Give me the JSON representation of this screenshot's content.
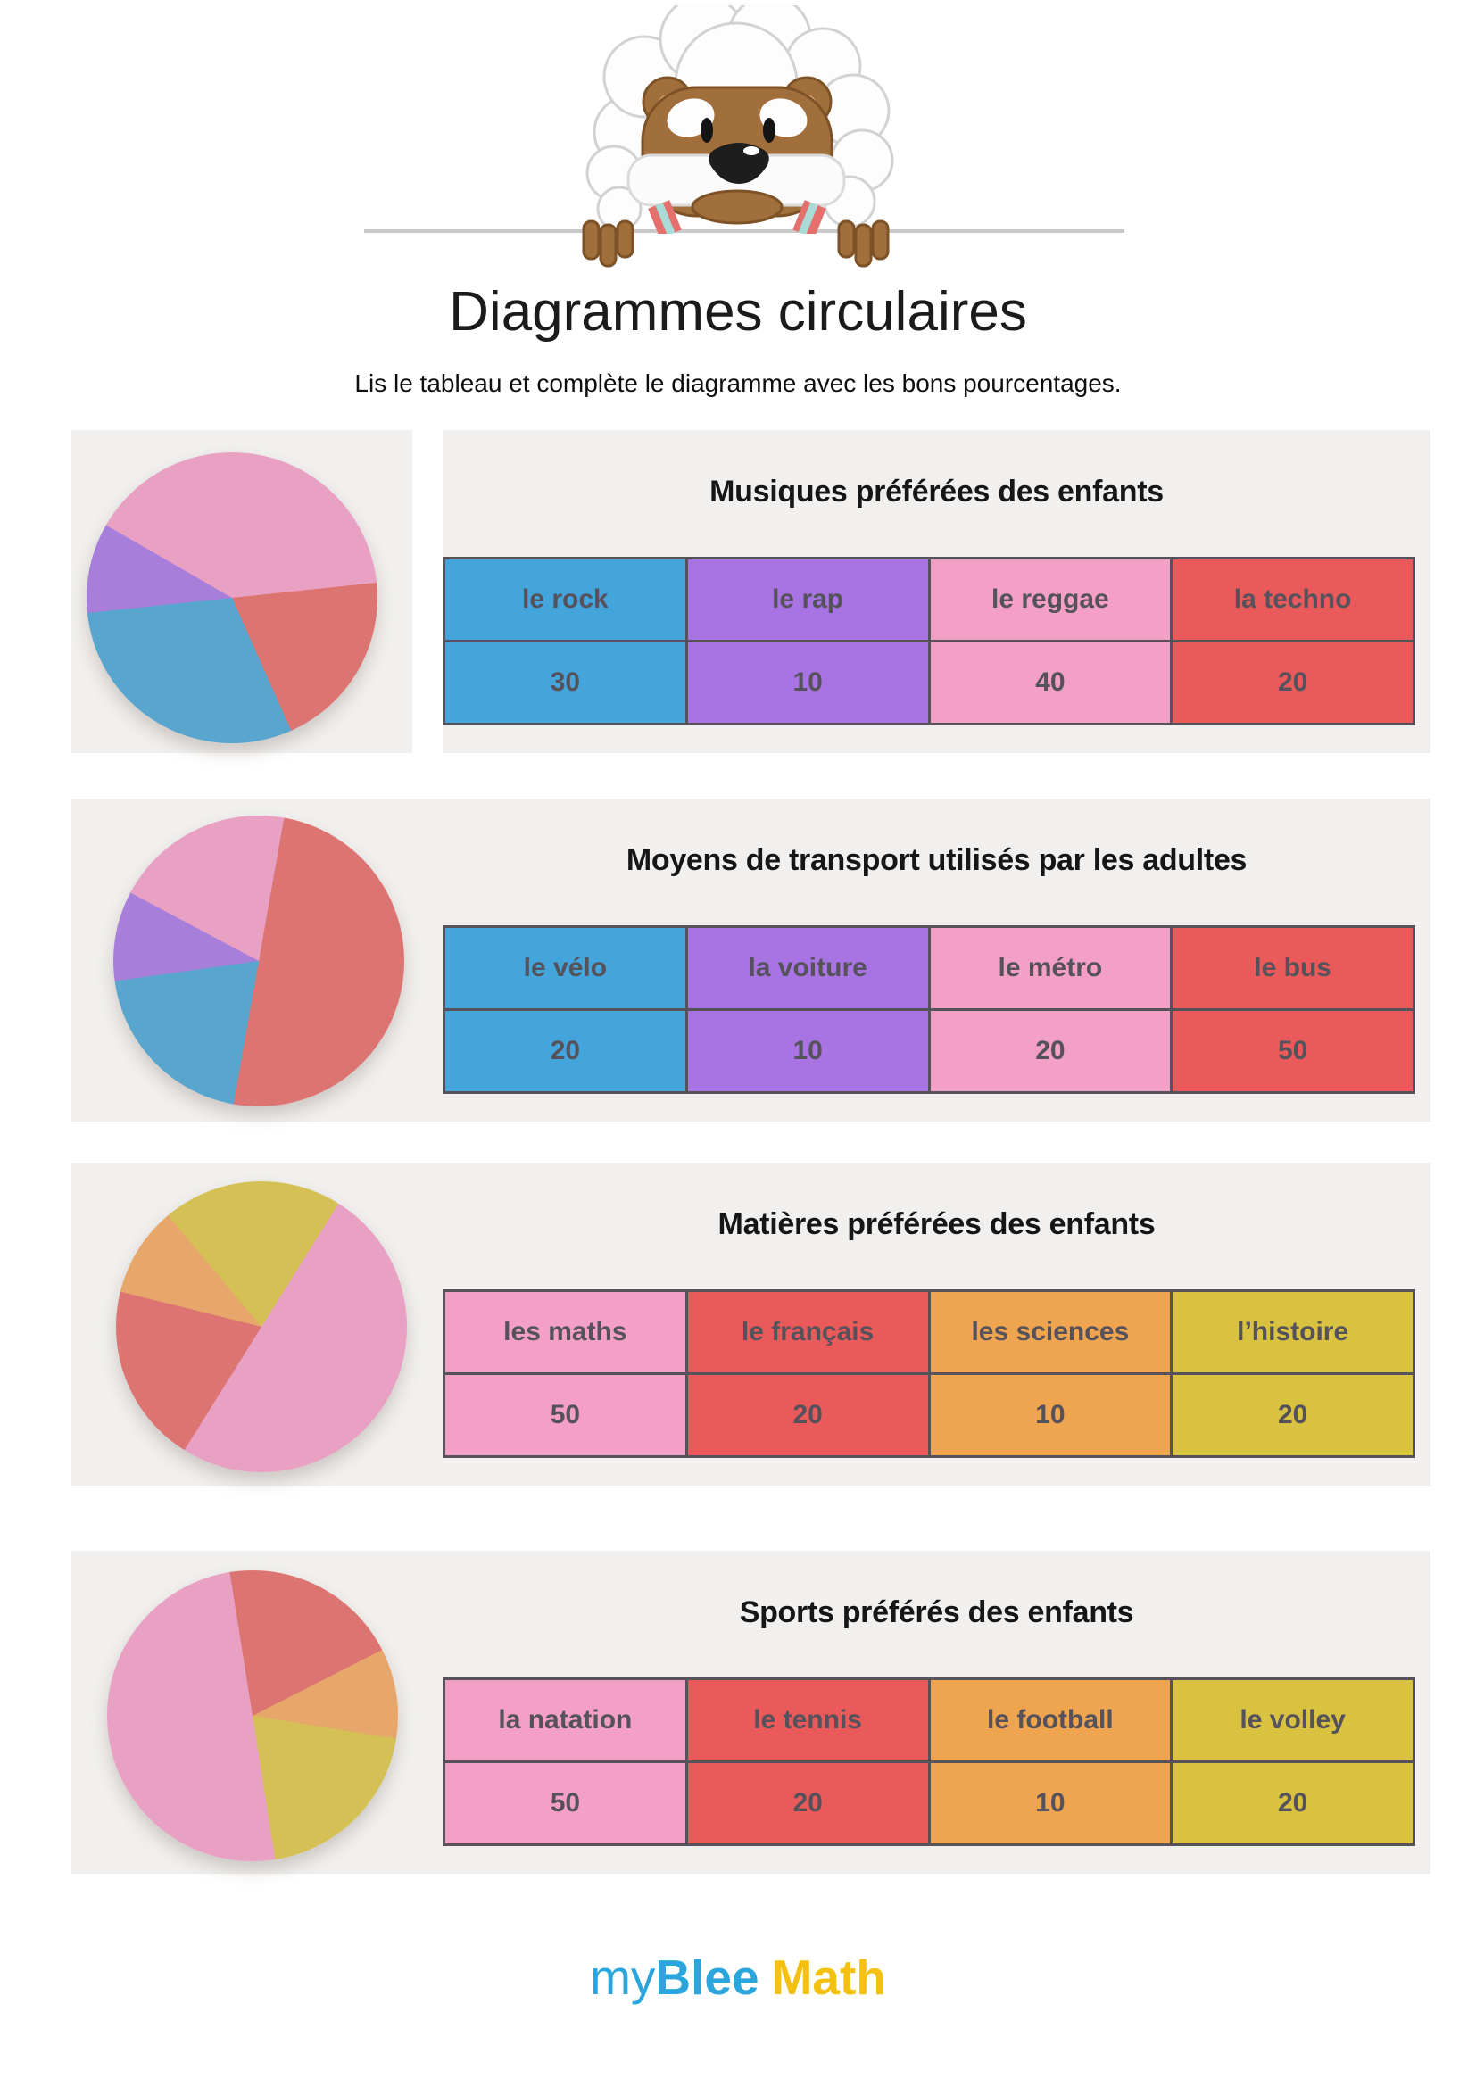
{
  "page": {
    "title": "Diagrammes circulaires",
    "subtitle": "Lis le tableau et complète le diagramme avec les bons pourcentages."
  },
  "colors": {
    "panel_bg": "#f1f0ee",
    "table_border": "#55525a",
    "cell_text": "#55525b",
    "section_title_text": "#161616",
    "header_line": "#c9c9c9",
    "logo_blue": "#2ba6dd",
    "logo_gold": "#f5c110",
    "cell": {
      "blue": "#44a5dc",
      "purple": "#a873e2",
      "pink": "#f49fc6",
      "red": "#eb5a5a",
      "orange": "#efa44f",
      "yellow": "#d8c23f"
    },
    "pie": {
      "blue": "#58a5ce",
      "purple": "#a87edb",
      "pink": "#e8a0c3",
      "red": "#dc7471",
      "orange": "#e7a76a",
      "yellow": "#d4c055"
    }
  },
  "sections": [
    {
      "title": "Musiques préférées des enfants",
      "columns": [
        {
          "label": "le rock",
          "value": "30",
          "color": "blue"
        },
        {
          "label": "le rap",
          "value": "10",
          "color": "purple"
        },
        {
          "label": "le reggae",
          "value": "40",
          "color": "pink"
        },
        {
          "label": "la techno",
          "value": "20",
          "color": "red"
        }
      ],
      "pie": {
        "start_deg": 300,
        "slices": [
          {
            "label": "le reggae",
            "percent": 40,
            "color": "pink"
          },
          {
            "label": "la techno",
            "percent": 20,
            "color": "red"
          },
          {
            "label": "le rock",
            "percent": 30,
            "color": "blue"
          },
          {
            "label": "le rap",
            "percent": 10,
            "color": "purple"
          }
        ]
      }
    },
    {
      "title": "Moyens de transport utilisés par les adultes",
      "columns": [
        {
          "label": "le vélo",
          "value": "20",
          "color": "blue"
        },
        {
          "label": "la voiture",
          "value": "10",
          "color": "purple"
        },
        {
          "label": "le métro",
          "value": "20",
          "color": "pink"
        },
        {
          "label": "le bus",
          "value": "50",
          "color": "red"
        }
      ],
      "pie": {
        "start_deg": 10,
        "slices": [
          {
            "label": "le bus",
            "percent": 50,
            "color": "red"
          },
          {
            "label": "le vélo",
            "percent": 20,
            "color": "blue"
          },
          {
            "label": "la voiture",
            "percent": 10,
            "color": "purple"
          },
          {
            "label": "le métro",
            "percent": 20,
            "color": "pink"
          }
        ]
      }
    },
    {
      "title": "Matières préférées des enfants",
      "columns": [
        {
          "label": "les maths",
          "value": "50",
          "color": "pink"
        },
        {
          "label": "le français",
          "value": "20",
          "color": "red"
        },
        {
          "label": "les sciences",
          "value": "10",
          "color": "orange"
        },
        {
          "label": "l’histoire",
          "value": "20",
          "color": "yellow"
        }
      ],
      "pie": {
        "start_deg": 32,
        "slices": [
          {
            "label": "les maths",
            "percent": 50,
            "color": "pink"
          },
          {
            "label": "le français",
            "percent": 20,
            "color": "red"
          },
          {
            "label": "les sciences",
            "percent": 10,
            "color": "orange"
          },
          {
            "label": "l’histoire",
            "percent": 20,
            "color": "yellow"
          }
        ]
      }
    },
    {
      "title": "Sports préférés des enfants",
      "columns": [
        {
          "label": "la natation",
          "value": "50",
          "color": "pink"
        },
        {
          "label": "le tennis",
          "value": "20",
          "color": "red"
        },
        {
          "label": "le football",
          "value": "10",
          "color": "orange"
        },
        {
          "label": "le volley",
          "value": "20",
          "color": "yellow"
        }
      ],
      "pie": {
        "start_deg": 351,
        "slices": [
          {
            "label": "le tennis",
            "percent": 20,
            "color": "red"
          },
          {
            "label": "le football",
            "percent": 10,
            "color": "orange"
          },
          {
            "label": "le volley",
            "percent": 20,
            "color": "yellow"
          },
          {
            "label": "la natation",
            "percent": 50,
            "color": "pink"
          }
        ]
      }
    }
  ],
  "footer": {
    "logo_my": "my",
    "logo_blee": "Blee",
    "logo_math": "Math"
  },
  "chart_data": [
    {
      "type": "pie",
      "title": "Musiques préférées des enfants",
      "labels": [
        "le rock",
        "le rap",
        "le reggae",
        "la techno"
      ],
      "values": [
        30,
        10,
        40,
        20
      ],
      "colors": [
        "blue",
        "purple",
        "pink",
        "red"
      ],
      "start_angle_deg": 300
    },
    {
      "type": "pie",
      "title": "Moyens de transport utilisés par les adultes",
      "labels": [
        "le vélo",
        "la voiture",
        "le métro",
        "le bus"
      ],
      "values": [
        20,
        10,
        20,
        50
      ],
      "colors": [
        "blue",
        "purple",
        "pink",
        "red"
      ],
      "start_angle_deg": 10
    },
    {
      "type": "pie",
      "title": "Matières préférées des enfants",
      "labels": [
        "les maths",
        "le français",
        "les sciences",
        "l’histoire"
      ],
      "values": [
        50,
        20,
        10,
        20
      ],
      "colors": [
        "pink",
        "red",
        "orange",
        "yellow"
      ],
      "start_angle_deg": 32
    },
    {
      "type": "pie",
      "title": "Sports préférés des enfants",
      "labels": [
        "la natation",
        "le tennis",
        "le football",
        "le volley"
      ],
      "values": [
        50,
        20,
        10,
        20
      ],
      "colors": [
        "pink",
        "red",
        "orange",
        "yellow"
      ],
      "start_angle_deg": 351
    }
  ]
}
